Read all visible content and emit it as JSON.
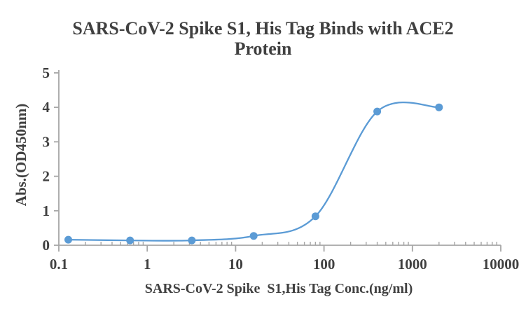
{
  "title": {
    "line1": "SARS-CoV-2 Spike S1, His Tag Binds with ACE2",
    "line2": "Protein"
  },
  "colors": {
    "series_blue": "#5B9BD5",
    "axis_gray": "#A6A6A6",
    "text_gray": "#404040"
  },
  "chart_data": {
    "type": "line",
    "title": "SARS-CoV-2 Spike S1, His Tag Binds with ACE2 Protein",
    "xlabel": "SARS-CoV-2 Spike  S1,His Tag Conc.(ng/ml)",
    "ylabel": "Abs.(OD450nm)",
    "x_scale": "log",
    "xlim": [
      0.1,
      10000
    ],
    "ylim": [
      0,
      5
    ],
    "x_ticks": [
      0.1,
      1,
      10,
      100,
      1000,
      10000
    ],
    "x_tick_labels": [
      "0.1",
      "1",
      "10",
      "100",
      "1000",
      "10000"
    ],
    "y_ticks": [
      0,
      1,
      2,
      3,
      4,
      5
    ],
    "y_tick_labels": [
      "0",
      "1",
      "2",
      "3",
      "4",
      "5"
    ],
    "grid": false,
    "legend": "none",
    "marker": "circle",
    "line_color": "#5B9BD5",
    "x": [
      0.128,
      0.64,
      3.2,
      16,
      80,
      400,
      2000
    ],
    "y": [
      0.16,
      0.14,
      0.14,
      0.27,
      0.84,
      3.88,
      4.0
    ]
  }
}
